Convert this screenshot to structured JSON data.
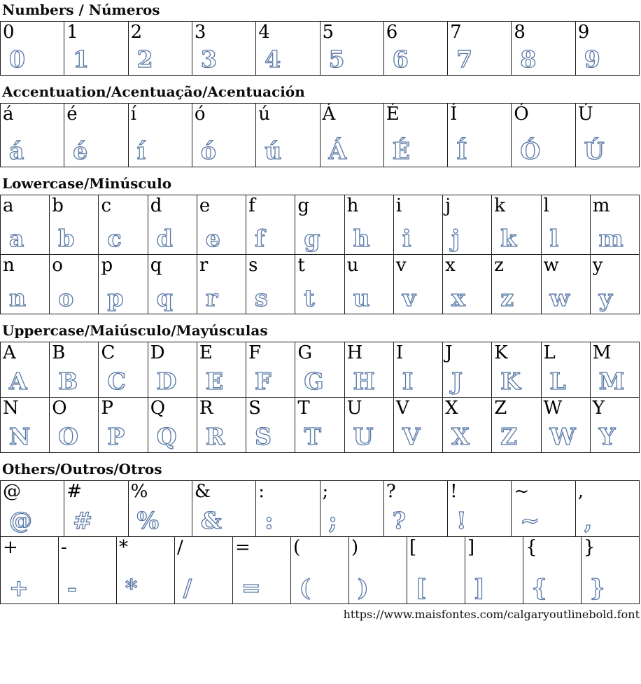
{
  "page": {
    "footer_url": "https://www.maisfontes.com/calgaryoutlinebold.font"
  },
  "colors": {
    "outline_glyph": "#5878a5",
    "reference_text": "#000000",
    "table_border": "#1f1f1f"
  },
  "sections": [
    {
      "id": "numbers",
      "title": "Numbers / Números",
      "rows": [
        [
          "0",
          "1",
          "2",
          "3",
          "4",
          "5",
          "6",
          "7",
          "8",
          "9"
        ]
      ]
    },
    {
      "id": "accentuation",
      "title": "Accentuation/Acentuação/Acentuación",
      "rows": [
        [
          "á",
          "é",
          "í",
          "ó",
          "ú",
          "Á",
          "É",
          "Í",
          "Ó",
          "Ú"
        ]
      ]
    },
    {
      "id": "lowercase",
      "title": "Lowercase/Minúsculo",
      "rows": [
        [
          "a",
          "b",
          "c",
          "d",
          "e",
          "f",
          "g",
          "h",
          "i",
          "j",
          "k",
          "l",
          "m"
        ],
        [
          "n",
          "o",
          "p",
          "q",
          "r",
          "s",
          "t",
          "u",
          "v",
          "x",
          "z",
          "w",
          "y"
        ]
      ]
    },
    {
      "id": "uppercase",
      "title": "Uppercase/Maiúsculo/Mayúsculas",
      "rows": [
        [
          "A",
          "B",
          "C",
          "D",
          "E",
          "F",
          "G",
          "H",
          "I",
          "J",
          "K",
          "L",
          "M"
        ],
        [
          "N",
          "O",
          "P",
          "Q",
          "R",
          "S",
          "T",
          "U",
          "V",
          "X",
          "Z",
          "W",
          "Y"
        ]
      ]
    },
    {
      "id": "others",
      "title": "Others/Outros/Otros",
      "rows": [
        [
          "@",
          "#",
          "%",
          "&",
          ":",
          ";",
          "?",
          "!",
          "~",
          ","
        ],
        [
          "+",
          "-",
          "*",
          "/",
          "=",
          "(",
          ")",
          "[",
          "]",
          "{",
          "}"
        ]
      ]
    }
  ]
}
